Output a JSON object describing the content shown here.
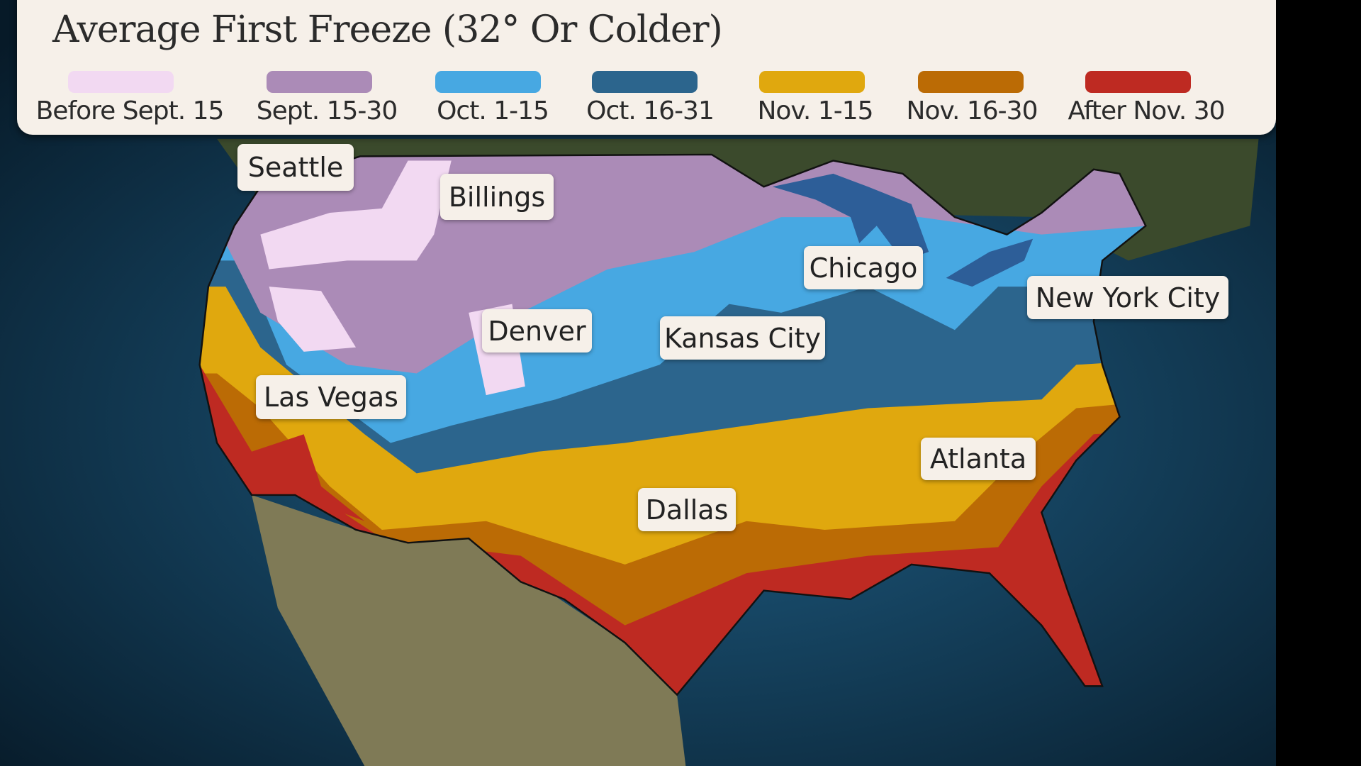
{
  "title": "Average First Freeze (32° Or Colder)",
  "legend": [
    {
      "label": "Before Sept. 15",
      "color": "#f2d9f2"
    },
    {
      "label": "Sept. 15-30",
      "color": "#ab8bb7"
    },
    {
      "label": "Oct. 1-15",
      "color": "#47a8e2"
    },
    {
      "label": "Oct. 16-31",
      "color": "#2c658d"
    },
    {
      "label": "Nov. 1-15",
      "color": "#e0a80e"
    },
    {
      "label": "Nov. 16-30",
      "color": "#bb6b05"
    },
    {
      "label": "After Nov. 30",
      "color": "#be2a22"
    }
  ],
  "cities": [
    "Seattle",
    "Billings",
    "Denver",
    "Kansas City",
    "Chicago",
    "New York City",
    "Las Vegas",
    "Atlanta",
    "Dallas"
  ]
}
